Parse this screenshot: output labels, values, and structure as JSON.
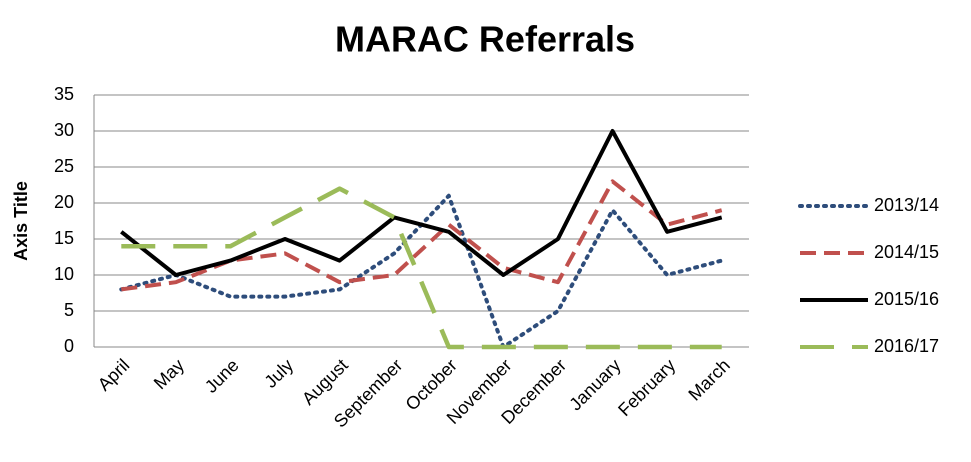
{
  "chart_data": {
    "type": "line",
    "title": "MARAC Referrals",
    "y_label": "Axis Title",
    "categories": [
      "April",
      "May",
      "June",
      "July",
      "August",
      "September",
      "October",
      "November",
      "December",
      "January",
      "February",
      "March"
    ],
    "series": [
      {
        "name": "2013/14",
        "color": "#2e4d7b",
        "style": "dotted",
        "values": [
          8,
          10,
          7,
          7,
          8,
          13,
          21,
          0,
          5,
          19,
          10,
          12
        ]
      },
      {
        "name": "2014/15",
        "color": "#c0504d",
        "style": "dashed",
        "values": [
          8,
          9,
          12,
          13,
          9,
          10,
          17,
          11,
          9,
          23,
          17,
          19
        ]
      },
      {
        "name": "2015/16",
        "color": "#000000",
        "style": "solid",
        "values": [
          16,
          10,
          12,
          15,
          12,
          18,
          16,
          10,
          15,
          30,
          16,
          18
        ]
      },
      {
        "name": "2016/17",
        "color": "#9bbb59",
        "style": "longdash",
        "values": [
          14,
          14,
          14,
          18,
          22,
          18,
          0,
          0,
          0,
          0,
          0,
          0
        ]
      }
    ],
    "ylim": [
      0,
      35
    ],
    "yticks": [
      0,
      5,
      10,
      15,
      20,
      25,
      30,
      35
    ],
    "grid": true,
    "legend": "right"
  }
}
